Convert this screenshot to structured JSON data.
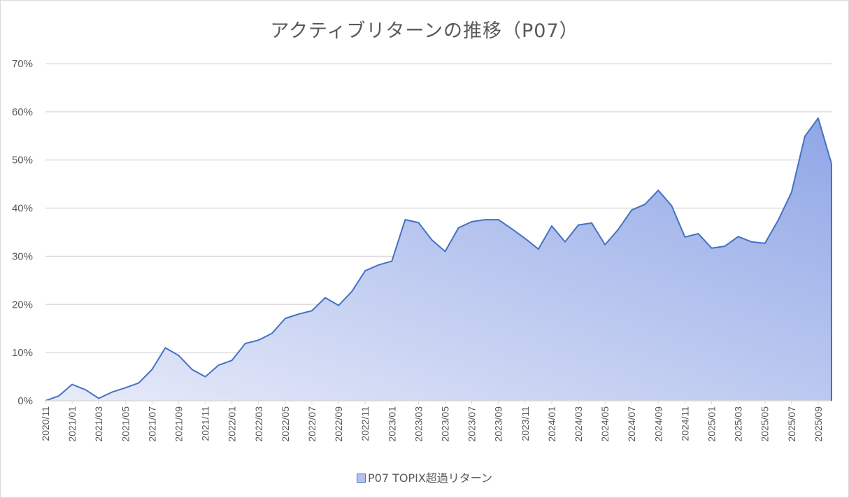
{
  "title": "アクティブリターンの推移（P07）",
  "legend": {
    "label": "P07 TOPIX超過リターン",
    "swatch_color": "#b4c0ee",
    "line_color": "#4472c4"
  },
  "y_axis": {
    "ticks": [
      "0%",
      "10%",
      "20%",
      "30%",
      "40%",
      "50%",
      "60%",
      "70%"
    ]
  },
  "x_axis": {
    "tick_labels": [
      "2020/11",
      "2021/01",
      "2021/03",
      "2021/05",
      "2021/07",
      "2021/09",
      "2021/11",
      "2022/01",
      "2022/03",
      "2022/05",
      "2022/07",
      "2022/09",
      "2022/11",
      "2023/01",
      "2023/03",
      "2023/05",
      "2023/07",
      "2023/09",
      "2023/11",
      "2024/01",
      "2024/03",
      "2024/05",
      "2024/07",
      "2024/09",
      "2024/11",
      "2025/01",
      "2025/03",
      "2025/05",
      "2025/07",
      "2025/09"
    ]
  },
  "chart_data": {
    "type": "area",
    "title": "アクティブリターンの推移（P07）",
    "xlabel": "",
    "ylabel": "",
    "ylim": [
      0,
      70
    ],
    "y_unit": "%",
    "grid": true,
    "legend_position": "bottom",
    "x": [
      "2020/11",
      "2020/12",
      "2021/01",
      "2021/02",
      "2021/03",
      "2021/04",
      "2021/05",
      "2021/06",
      "2021/07",
      "2021/08",
      "2021/09",
      "2021/10",
      "2021/11",
      "2021/12",
      "2022/01",
      "2022/02",
      "2022/03",
      "2022/04",
      "2022/05",
      "2022/06",
      "2022/07",
      "2022/08",
      "2022/09",
      "2022/10",
      "2022/11",
      "2022/12",
      "2023/01",
      "2023/02",
      "2023/03",
      "2023/04",
      "2023/05",
      "2023/06",
      "2023/07",
      "2023/08",
      "2023/09",
      "2023/10",
      "2023/11",
      "2023/12",
      "2024/01",
      "2024/02",
      "2024/03",
      "2024/04",
      "2024/05",
      "2024/06",
      "2024/07",
      "2024/08",
      "2024/09",
      "2024/10",
      "2024/11",
      "2024/12",
      "2025/01",
      "2025/02",
      "2025/03",
      "2025/04",
      "2025/05",
      "2025/06",
      "2025/07",
      "2025/08",
      "2025/09",
      "2025/10"
    ],
    "series": [
      {
        "name": "P07 TOPIX超過リターン",
        "values": [
          0.0,
          1.0,
          3.4,
          2.3,
          0.5,
          1.8,
          2.7,
          3.7,
          6.5,
          11.0,
          9.4,
          6.5,
          5.0,
          7.4,
          8.4,
          11.9,
          12.6,
          14.0,
          17.1,
          18.0,
          18.7,
          21.4,
          19.8,
          22.7,
          27.0,
          28.2,
          29.0,
          37.6,
          37.0,
          33.4,
          31.0,
          35.9,
          37.2,
          37.6,
          37.6,
          35.7,
          33.7,
          31.5,
          36.3,
          33.0,
          36.5,
          36.9,
          32.4,
          35.6,
          39.6,
          40.8,
          43.7,
          40.5,
          34.0,
          34.7,
          31.7,
          32.1,
          34.1,
          33.0,
          32.7,
          37.5,
          43.3,
          54.9,
          58.7,
          49.2
        ]
      }
    ]
  }
}
